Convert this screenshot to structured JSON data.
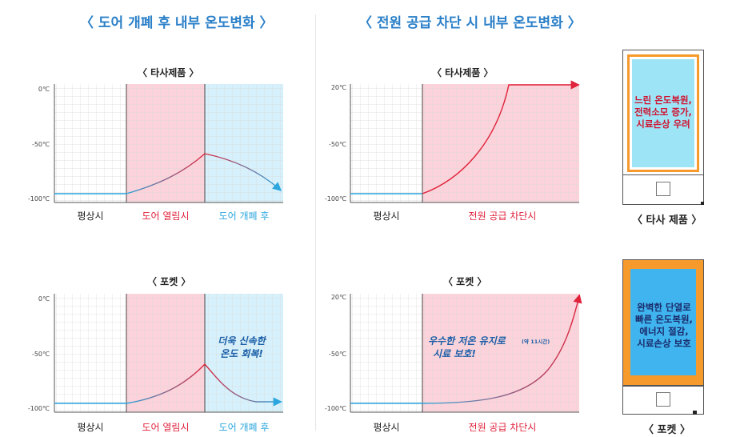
{
  "titles": {
    "left": "〈 도어 개폐 후 내부 온도변화 〉",
    "right": "〈 전원 공급 차단 시 내부 온도변화 〉"
  },
  "panels": {
    "p1": {
      "subtitle": "〈 타사제품 〉",
      "y_labels": [
        "0℃",
        "-50℃",
        "-100℃"
      ],
      "x_labels": [
        "평상시",
        "도어 열림시",
        "도어 개폐 후"
      ]
    },
    "p2": {
      "subtitle": "〈 타사제품 〉",
      "y_labels": [
        "20℃",
        "-50℃",
        "-100℃"
      ],
      "x_labels": [
        "평상시",
        "전원 공급 차단시"
      ]
    },
    "p3": {
      "subtitle": "〈 포켓 〉",
      "y_labels": [
        "0℃",
        "-50℃",
        "-100℃"
      ],
      "x_labels": [
        "평상시",
        "도어 열림시",
        "도어 개폐 후"
      ],
      "annotation": [
        "더욱 신속한",
        "온도 회복!"
      ]
    },
    "p4": {
      "subtitle": "〈 포켓 〉",
      "y_labels": [
        "20℃",
        "-50℃",
        "-100℃"
      ],
      "x_labels": [
        "평상시",
        "전원 공급 차단시"
      ],
      "annotation_main": "우수한 저온 유지로",
      "annotation_small": "(약 11시간)",
      "annotation_line2": "시료 보호!"
    }
  },
  "devices": {
    "other": {
      "label": "〈 타사 제품 〉",
      "message": [
        "느린 온도복원,",
        "전력소모 증가,",
        "시료손상 우려"
      ]
    },
    "pocket": {
      "label": "〈 포켓 〉",
      "message": [
        "완벽한 단열로",
        "빠른 온도복원,",
        "에너지 절감,",
        "시료손상 보호"
      ]
    }
  },
  "colors": {
    "title_blue": "#2a7fc8",
    "zone_red": "#fcd3da",
    "zone_blue": "#d6f1fb",
    "red_text": "#e0223b",
    "blue_text": "#2ba6de",
    "curve_blue": "#2ba6de",
    "curve_red": "#e0223b",
    "device_orange": "#f79a2c",
    "device_screen": "#3fb4ee"
  }
}
